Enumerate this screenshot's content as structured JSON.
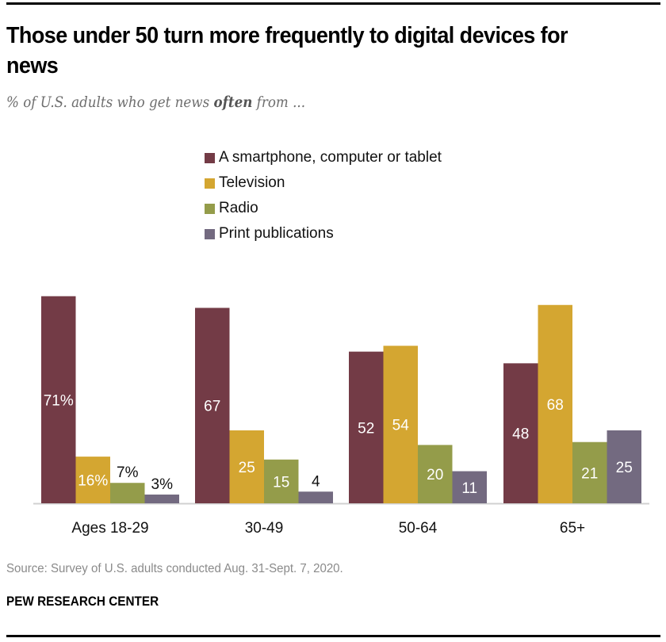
{
  "title": "Those under 50 turn more frequently to digital devices for news",
  "subtitle": {
    "pre": "% of U.S. adults who get news ",
    "emph": "often",
    "post": " from ..."
  },
  "source": "Source: Survey of U.S. adults conducted Aug. 31-Sept. 7, 2020.",
  "org": "PEW RESEARCH CENTER",
  "chart_data": {
    "type": "bar",
    "title": "Those under 50 turn more frequently to digital devices for news",
    "subtitle": "% of U.S. adults who get news often from ...",
    "xlabel": "",
    "ylabel": "",
    "ylim": [
      0,
      71
    ],
    "grid": false,
    "legend_position": "top-center",
    "categories": [
      "Ages 18-29",
      "30-49",
      "50-64",
      "65+"
    ],
    "series": [
      {
        "name": "A smartphone, computer or tablet",
        "color": "#733b46",
        "values": [
          71,
          67,
          52,
          48
        ]
      },
      {
        "name": "Television",
        "color": "#d4a631",
        "values": [
          16,
          25,
          54,
          68
        ]
      },
      {
        "name": "Radio",
        "color": "#949c4a",
        "values": [
          7,
          15,
          20,
          21
        ]
      },
      {
        "name": "Print publications",
        "color": "#736a80",
        "values": [
          3,
          4,
          11,
          25
        ]
      }
    ],
    "data_labels": [
      [
        "71%",
        "16%",
        "7%",
        "3%"
      ],
      [
        "67",
        "25",
        "15",
        "4"
      ],
      [
        "52",
        "54",
        "20",
        "11"
      ],
      [
        "48",
        "68",
        "21",
        "25"
      ]
    ]
  }
}
